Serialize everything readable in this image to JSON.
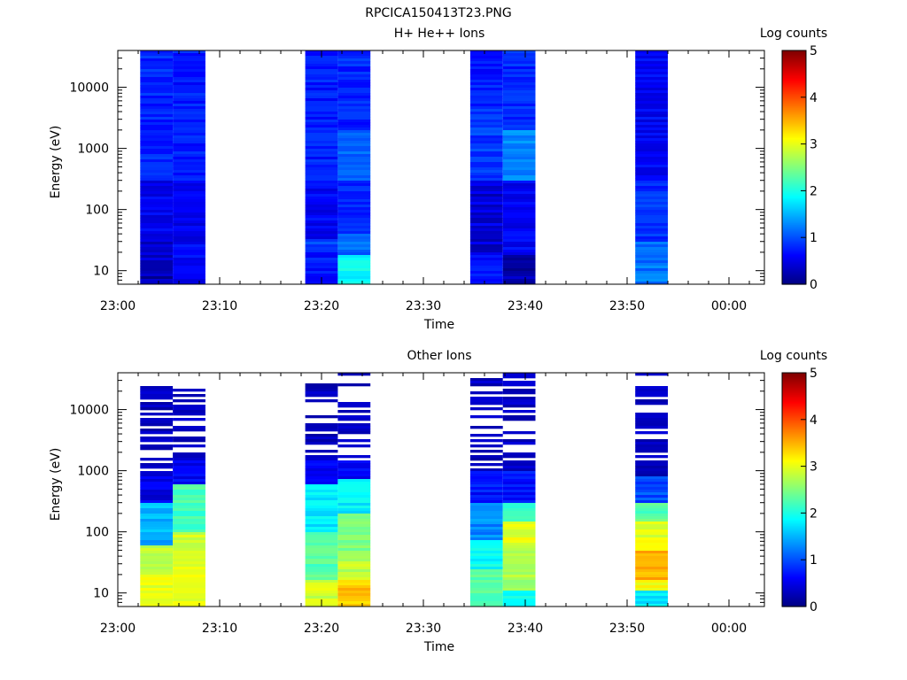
{
  "figure_title": "RPCICA150413T23.PNG",
  "chart_data": [
    {
      "type": "heatmap",
      "title": "H+ He++ Ions",
      "xlabel": "Time",
      "ylabel": "Energy (eV)",
      "colorbar_label": "Log counts",
      "colorbar_ticks": [
        "0",
        "1",
        "2",
        "3",
        "4",
        "5"
      ],
      "colorbar_range": [
        0,
        5
      ],
      "x_tick_labels": [
        "23:00",
        "23:10",
        "23:20",
        "23:30",
        "23:40",
        "23:50",
        "00:00"
      ],
      "y_tick_labels": [
        "10",
        "100",
        "1000",
        "10000"
      ],
      "x_range_minutes": [
        0,
        63
      ],
      "y_range_eV": [
        6,
        40000
      ],
      "y_scale": "log",
      "colormap": "jet",
      "blocks": [
        {
          "t_start_min": 2.2,
          "t_end_min": 5.4,
          "level_bands": [
            [
              6,
              12,
              0.2
            ],
            [
              12,
              30,
              0.35
            ],
            [
              30,
              300,
              0.55
            ],
            [
              300,
              40000,
              0.8
            ]
          ]
        },
        {
          "t_start_min": 5.4,
          "t_end_min": 8.6,
          "level_bands": [
            [
              6,
              30,
              0.6
            ],
            [
              30,
              300,
              0.55
            ],
            [
              300,
              40000,
              0.75
            ]
          ]
        },
        {
          "t_start_min": 18.4,
          "t_end_min": 21.6,
          "level_bands": [
            [
              6,
              20,
              0.7
            ],
            [
              20,
              32,
              0.9
            ],
            [
              32,
              300,
              0.6
            ],
            [
              300,
              40000,
              0.75
            ]
          ]
        },
        {
          "t_start_min": 21.6,
          "t_end_min": 24.8,
          "level_bands": [
            [
              6,
              18,
              1.9
            ],
            [
              18,
              40,
              1.15
            ],
            [
              40,
              300,
              0.8
            ],
            [
              300,
              2000,
              1.1
            ],
            [
              2000,
              40000,
              0.8
            ]
          ]
        },
        {
          "t_start_min": 34.6,
          "t_end_min": 37.8,
          "level_bands": [
            [
              6,
              18,
              0.7
            ],
            [
              18,
              300,
              0.45
            ],
            [
              300,
              5000,
              0.9
            ],
            [
              5000,
              40000,
              0.75
            ]
          ]
        },
        {
          "t_start_min": 37.8,
          "t_end_min": 41.0,
          "level_bands": [
            [
              6,
              18,
              0.2
            ],
            [
              18,
              300,
              0.6
            ],
            [
              300,
              2000,
              1.3
            ],
            [
              2000,
              40000,
              0.8
            ]
          ]
        },
        {
          "t_start_min": 50.8,
          "t_end_min": 54.0,
          "level_bands": [
            [
              6,
              30,
              1.2
            ],
            [
              30,
              300,
              0.85
            ],
            [
              300,
              40000,
              0.6
            ]
          ]
        }
      ]
    },
    {
      "type": "heatmap",
      "title": "Other Ions",
      "xlabel": "Time",
      "ylabel": "Energy (eV)",
      "colorbar_label": "Log counts",
      "colorbar_ticks": [
        "0",
        "1",
        "2",
        "3",
        "4",
        "5"
      ],
      "colorbar_range": [
        0,
        5
      ],
      "x_tick_labels": [
        "23:00",
        "23:10",
        "23:20",
        "23:30",
        "23:40",
        "23:50",
        "00:00"
      ],
      "y_tick_labels": [
        "10",
        "100",
        "1000",
        "10000"
      ],
      "x_range_minutes": [
        0,
        63
      ],
      "y_range_eV": [
        6,
        40000
      ],
      "y_scale": "log",
      "colormap": "jet",
      "blocks": [
        {
          "t_start_min": 2.2,
          "t_end_min": 5.4,
          "level_bands": [
            [
              6,
              20,
              3.0
            ],
            [
              20,
              60,
              2.8
            ],
            [
              60,
              300,
              1.5
            ],
            [
              300,
              1000,
              0.5
            ],
            [
              1000,
              34000,
              0.2
            ]
          ]
        },
        {
          "t_start_min": 5.4,
          "t_end_min": 8.6,
          "level_bands": [
            [
              6,
              30,
              3.0
            ],
            [
              30,
              100,
              2.9
            ],
            [
              100,
              600,
              2.2
            ],
            [
              600,
              1500,
              0.6
            ],
            [
              1500,
              25000,
              0.2
            ]
          ]
        },
        {
          "t_start_min": 18.4,
          "t_end_min": 21.6,
          "level_bands": [
            [
              6,
              16,
              2.9
            ],
            [
              16,
              100,
              2.3
            ],
            [
              100,
              600,
              1.8
            ],
            [
              600,
              1500,
              0.6
            ],
            [
              1500,
              28000,
              0.2
            ]
          ]
        },
        {
          "t_start_min": 21.6,
          "t_end_min": 24.8,
          "level_bands": [
            [
              6,
              16,
              3.4
            ],
            [
              16,
              40,
              2.8
            ],
            [
              40,
              200,
              2.5
            ],
            [
              200,
              700,
              1.8
            ],
            [
              700,
              1500,
              0.6
            ],
            [
              1500,
              40000,
              0.2
            ]
          ]
        },
        {
          "t_start_min": 34.6,
          "t_end_min": 37.8,
          "level_bands": [
            [
              6,
              25,
              2.3
            ],
            [
              25,
              70,
              1.9
            ],
            [
              70,
              300,
              1.3
            ],
            [
              300,
              1000,
              0.7
            ],
            [
              1000,
              40000,
              0.2
            ]
          ]
        },
        {
          "t_start_min": 37.8,
          "t_end_min": 41.0,
          "level_bands": [
            [
              6,
              11,
              2.0
            ],
            [
              11,
              60,
              2.7
            ],
            [
              60,
              150,
              3.0
            ],
            [
              150,
              300,
              2.2
            ],
            [
              300,
              1000,
              0.7
            ],
            [
              1000,
              40000,
              0.2
            ]
          ]
        },
        {
          "t_start_min": 50.8,
          "t_end_min": 54.0,
          "level_bands": [
            [
              6,
              11,
              1.8
            ],
            [
              11,
              16,
              3.1
            ],
            [
              16,
              50,
              3.5
            ],
            [
              50,
              150,
              3.0
            ],
            [
              150,
              300,
              2.3
            ],
            [
              300,
              800,
              1.0
            ],
            [
              800,
              40000,
              0.2
            ]
          ]
        }
      ]
    }
  ]
}
